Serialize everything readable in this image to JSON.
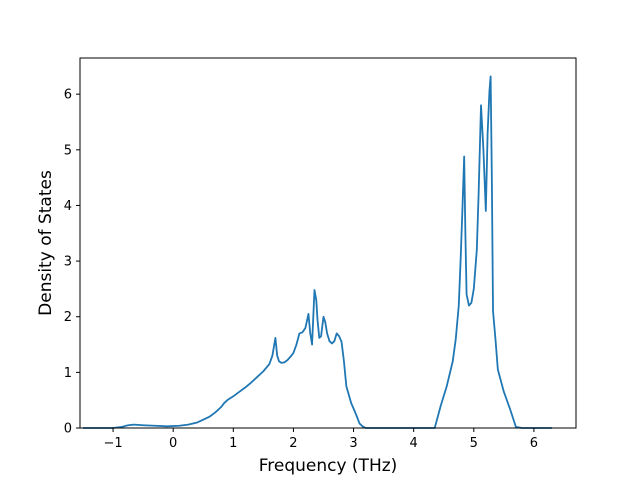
{
  "chart_data": {
    "type": "line",
    "title": "",
    "xlabel": "Frequency (THz)",
    "ylabel": "Density of States",
    "xlim": [
      -1.55,
      6.7
    ],
    "ylim": [
      0,
      6.65
    ],
    "grid": false,
    "x_ticks": [
      -1,
      0,
      1,
      2,
      3,
      4,
      5,
      6
    ],
    "y_ticks": [
      0,
      1,
      2,
      3,
      4,
      5,
      6
    ],
    "series": [
      {
        "color": "#1f77b4",
        "x": [
          -1.5,
          -1.0,
          -0.85,
          -0.75,
          -0.65,
          -0.5,
          -0.3,
          -0.1,
          0.1,
          0.25,
          0.4,
          0.5,
          0.6,
          0.7,
          0.8,
          0.85,
          0.9,
          1.0,
          1.1,
          1.2,
          1.3,
          1.4,
          1.5,
          1.6,
          1.65,
          1.7,
          1.73,
          1.76,
          1.8,
          1.85,
          1.9,
          1.95,
          2.0,
          2.05,
          2.1,
          2.15,
          2.2,
          2.25,
          2.28,
          2.31,
          2.35,
          2.38,
          2.4,
          2.43,
          2.46,
          2.5,
          2.53,
          2.56,
          2.6,
          2.64,
          2.68,
          2.72,
          2.76,
          2.8,
          2.84,
          2.88,
          2.92,
          2.96,
          3.0,
          3.05,
          3.1,
          3.15,
          3.2,
          3.25,
          3.3,
          3.4,
          3.6,
          3.8,
          4.0,
          4.2,
          4.35,
          4.45,
          4.55,
          4.65,
          4.7,
          4.75,
          4.78,
          4.81,
          4.84,
          4.86,
          4.88,
          4.92,
          4.96,
          5.0,
          5.05,
          5.08,
          5.12,
          5.16,
          5.2,
          5.23,
          5.26,
          5.28,
          5.3,
          5.32,
          5.36,
          5.4,
          5.5,
          5.6,
          5.7,
          5.8,
          6.0,
          6.3
        ],
        "y": [
          0.0,
          0.0,
          0.02,
          0.05,
          0.06,
          0.05,
          0.04,
          0.03,
          0.04,
          0.06,
          0.1,
          0.15,
          0.2,
          0.28,
          0.38,
          0.45,
          0.5,
          0.57,
          0.65,
          0.73,
          0.82,
          0.92,
          1.02,
          1.15,
          1.3,
          1.62,
          1.3,
          1.2,
          1.17,
          1.18,
          1.22,
          1.28,
          1.35,
          1.5,
          1.7,
          1.72,
          1.8,
          2.05,
          1.7,
          1.5,
          2.48,
          2.3,
          1.95,
          1.62,
          1.65,
          2.0,
          1.9,
          1.7,
          1.56,
          1.52,
          1.56,
          1.7,
          1.65,
          1.55,
          1.2,
          0.75,
          0.6,
          0.45,
          0.35,
          0.22,
          0.08,
          0.03,
          0.0,
          0.0,
          0.0,
          0.0,
          0.0,
          0.0,
          0.0,
          0.0,
          0.0,
          0.4,
          0.75,
          1.2,
          1.6,
          2.2,
          3.0,
          3.9,
          4.88,
          3.5,
          2.4,
          2.2,
          2.25,
          2.5,
          3.2,
          4.2,
          5.8,
          5.0,
          3.9,
          5.3,
          6.05,
          6.32,
          4.5,
          2.1,
          1.6,
          1.05,
          0.65,
          0.35,
          0.02,
          0.0,
          0.0,
          0.0
        ]
      }
    ]
  }
}
